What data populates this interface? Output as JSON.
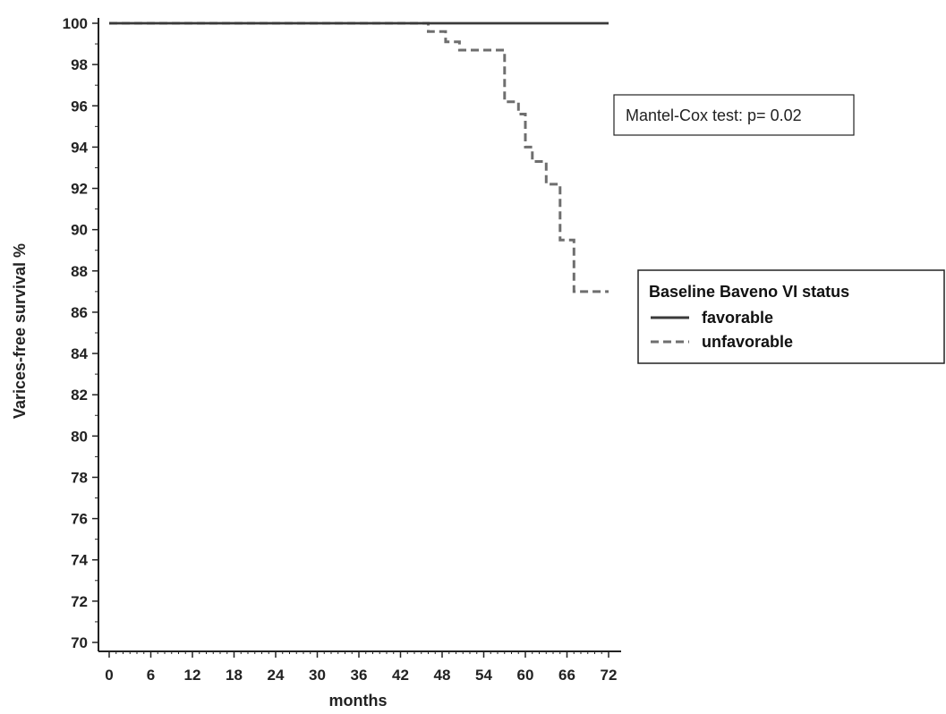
{
  "chart_data": {
    "type": "line",
    "subtype": "kaplan-meier step",
    "xlabel": "months",
    "ylabel": "Varices-free survival %",
    "xlim": [
      0,
      72
    ],
    "ylim": [
      70,
      100
    ],
    "xticks": [
      0,
      6,
      12,
      18,
      24,
      30,
      36,
      42,
      48,
      54,
      60,
      66,
      72
    ],
    "yticks": [
      70,
      72,
      74,
      76,
      78,
      80,
      82,
      84,
      86,
      88,
      90,
      92,
      94,
      96,
      98,
      100
    ],
    "grid": false,
    "annotation": "Mantel-Cox test: p= 0.02",
    "legend": {
      "title": "Baseline Baveno VI status",
      "placement": "right"
    },
    "series": [
      {
        "name": "favorable",
        "style": "solid",
        "color": "#3a3a3a",
        "points": [
          [
            0,
            100
          ],
          [
            72,
            100
          ]
        ]
      },
      {
        "name": "unfavorable",
        "style": "dashed",
        "color": "#6e6e6e",
        "points": [
          [
            0,
            100
          ],
          [
            46,
            100
          ],
          [
            46,
            99.6
          ],
          [
            48.5,
            99.6
          ],
          [
            48.5,
            99.1
          ],
          [
            50.5,
            99.1
          ],
          [
            50.5,
            98.7
          ],
          [
            57,
            98.7
          ],
          [
            57,
            96.2
          ],
          [
            59,
            96.2
          ],
          [
            59,
            95.6
          ],
          [
            60,
            95.6
          ],
          [
            60,
            94.0
          ],
          [
            61,
            94.0
          ],
          [
            61,
            93.3
          ],
          [
            63,
            93.3
          ],
          [
            63,
            92.2
          ],
          [
            65,
            92.2
          ],
          [
            65,
            89.5
          ],
          [
            67,
            89.5
          ],
          [
            67,
            87.0
          ],
          [
            72,
            87.0
          ]
        ]
      }
    ]
  }
}
